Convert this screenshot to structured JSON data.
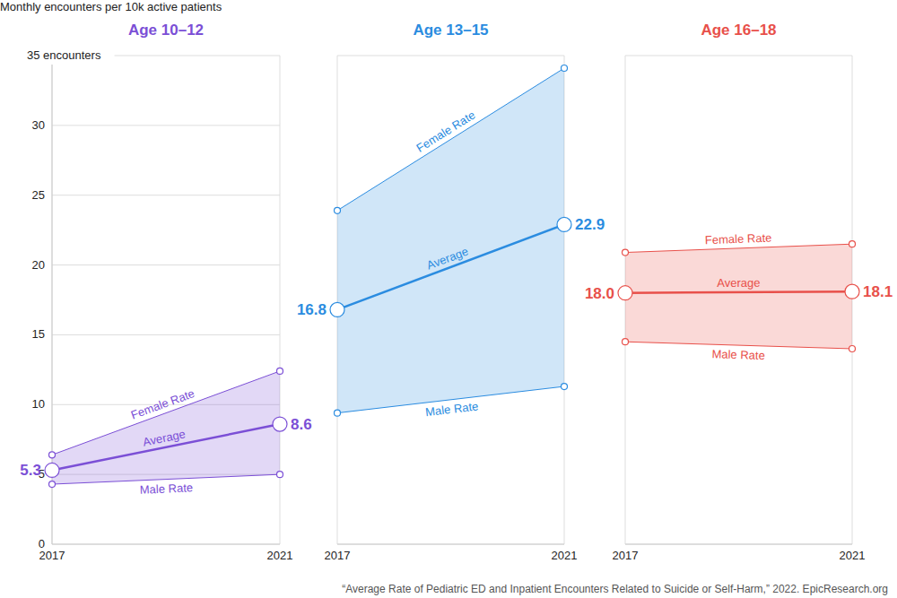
{
  "chart_data": [
    {
      "type": "line",
      "title": "Age 10–12",
      "ylabel": "Monthly encounters per 10k active patients",
      "categories": [
        "2017",
        "2021"
      ],
      "color": "#7b4fd6",
      "series": [
        {
          "name": "Female Rate",
          "values": [
            6.4,
            12.4
          ],
          "marker": "circle"
        },
        {
          "name": "Average",
          "values": [
            5.3,
            8.6
          ],
          "marker": "circle",
          "data_labels": true
        },
        {
          "name": "Male Rate",
          "values": [
            4.3,
            5.0
          ],
          "marker": "circle"
        }
      ],
      "ylim": [
        0,
        35
      ],
      "yticks": [
        0,
        5,
        10,
        15,
        20,
        25,
        30,
        {
          "value": 35,
          "label": "35 encounters"
        }
      ],
      "grid": true,
      "tick_labels": true
    },
    {
      "type": "line",
      "title": "Age 13–15",
      "categories": [
        "2017",
        "2021"
      ],
      "color": "#2b8ce0",
      "series": [
        {
          "name": "Female Rate",
          "values": [
            23.9,
            34.1
          ],
          "marker": "circle"
        },
        {
          "name": "Average",
          "values": [
            16.8,
            22.9
          ],
          "marker": "circle",
          "data_labels": true
        },
        {
          "name": "Male Rate",
          "values": [
            9.4,
            11.3
          ],
          "marker": "circle"
        }
      ],
      "ylim": [
        0,
        35
      ],
      "yticks": [
        0,
        5,
        10,
        15,
        20,
        25,
        30,
        35
      ],
      "grid": true,
      "tick_labels": "x"
    },
    {
      "type": "line",
      "title": "Age 16–18",
      "categories": [
        "2017",
        "2021"
      ],
      "color": "#e8504a",
      "series": [
        {
          "name": "Female Rate",
          "values": [
            20.9,
            21.5
          ],
          "marker": "circle"
        },
        {
          "name": "Average",
          "values": [
            18.0,
            18.1
          ],
          "value_labels": [
            "18.0",
            "18.1"
          ],
          "marker": "circle",
          "data_labels": true
        },
        {
          "name": "Male Rate",
          "values": [
            14.5,
            14.0
          ],
          "marker": "circle"
        }
      ],
      "ylim": [
        0,
        35
      ],
      "yticks": [
        0,
        5,
        10,
        15,
        20,
        25,
        30,
        35
      ],
      "grid": true,
      "tick_labels": "x"
    }
  ],
  "source": "“Average Rate of Pediatric ED and Inpatient Encounters Related to Suicide or Self-Harm,” 2022. EpicResearch.org"
}
